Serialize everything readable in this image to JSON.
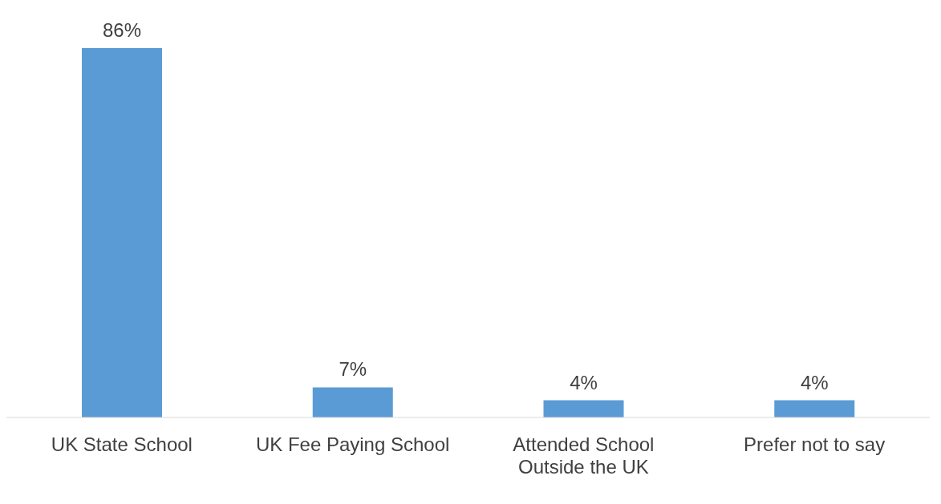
{
  "chart_data": {
    "type": "bar",
    "categories": [
      "UK State School",
      "UK Fee Paying School",
      "Attended School Outside the UK",
      "Prefer not to say"
    ],
    "values": [
      86,
      7,
      4,
      4
    ],
    "value_labels": [
      "86%",
      "7%",
      "4%",
      "4%"
    ],
    "color": "#5b9bd5",
    "grid": false,
    "legend": false
  }
}
